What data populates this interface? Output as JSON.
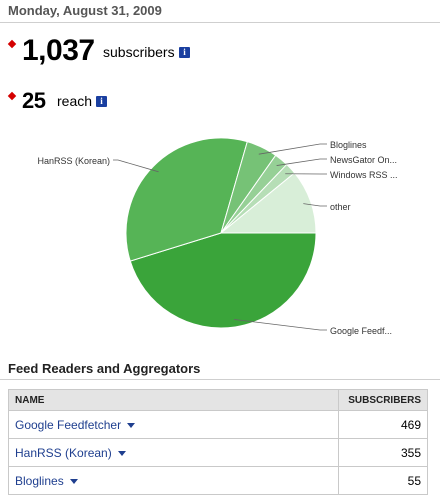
{
  "header": {
    "date": "Monday, August 31, 2009"
  },
  "stats": {
    "subscribers": {
      "value": "1,037",
      "label": "subscribers",
      "info_icon": "i"
    },
    "reach": {
      "value": "25",
      "label": "reach",
      "info_icon": "i"
    }
  },
  "chart_data": {
    "type": "pie",
    "categories": [
      "Google Feedf...",
      "HanRSS (Korean)",
      "Bloglines",
      "NewsGator On...",
      "Windows RSS ...",
      "other"
    ],
    "values": [
      469,
      355,
      55,
      25,
      20,
      113
    ],
    "colors": [
      "#3aa43a",
      "#56b456",
      "#76c276",
      "#96d096",
      "#b6deb6",
      "#d8eed8"
    ]
  },
  "feed_section": {
    "title": "Feed Readers and Aggregators",
    "columns": [
      "NAME",
      "SUBSCRIBERS"
    ],
    "rows": [
      {
        "name": "Google Feedfetcher",
        "subscribers": "469"
      },
      {
        "name": "HanRSS (Korean)",
        "subscribers": "355"
      },
      {
        "name": "Bloglines",
        "subscribers": "55"
      }
    ]
  }
}
